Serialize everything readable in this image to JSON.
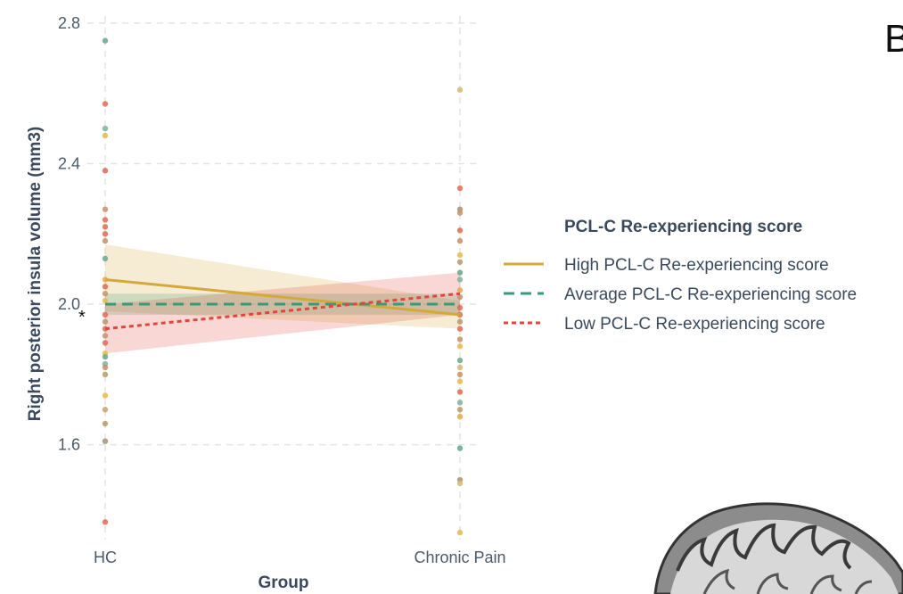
{
  "panel_letter": "B",
  "significance_marker": "*",
  "chart_data": {
    "type": "line",
    "xlabel": "Group",
    "ylabel": "Right posterior insula volume (mm3)",
    "categories": [
      "HC",
      "Chronic Pain"
    ],
    "ylim": [
      1.33,
      2.82
    ],
    "y_ticks": [
      2.8,
      2.4,
      2.0,
      1.6
    ],
    "y_tick_labels": [
      "2.8",
      "2.4",
      "2.0",
      "1.6"
    ],
    "grid": true,
    "legend": {
      "title": "PCL-C Re-experiencing score",
      "placement": "right"
    },
    "series": [
      {
        "name": "High PCL-C Re-experiencing score",
        "values": [
          2.07,
          1.97
        ],
        "ci_low": [
          1.98,
          1.93
        ],
        "ci_high": [
          2.17,
          2.01
        ],
        "color": "#d4a93a",
        "dash": "solid"
      },
      {
        "name": "Average PCL-C Re-experiencing score",
        "values": [
          2.0,
          2.0
        ],
        "ci_low": [
          1.97,
          1.97
        ],
        "ci_high": [
          2.03,
          2.03
        ],
        "color": "#3a9a78",
        "dash": "dashed"
      },
      {
        "name": "Low PCL-C Re-experiencing score",
        "values": [
          1.93,
          2.03
        ],
        "ci_low": [
          1.86,
          1.97
        ],
        "ci_high": [
          2.0,
          2.09
        ],
        "color": "#e0473c",
        "dash": "dotted"
      }
    ],
    "points": {
      "HC": [
        {
          "y": 2.75,
          "color": "#6aa88c"
        },
        {
          "y": 2.57,
          "color": "#e06a52"
        },
        {
          "y": 2.5,
          "color": "#7fb0a0"
        },
        {
          "y": 2.48,
          "color": "#e6b84a"
        },
        {
          "y": 2.38,
          "color": "#e06a52"
        },
        {
          "y": 2.27,
          "color": "#c8906a"
        },
        {
          "y": 2.24,
          "color": "#e06a52"
        },
        {
          "y": 2.22,
          "color": "#d87050"
        },
        {
          "y": 2.2,
          "color": "#e06a52"
        },
        {
          "y": 2.18,
          "color": "#c8906a"
        },
        {
          "y": 2.13,
          "color": "#6aa88c"
        },
        {
          "y": 2.07,
          "color": "#e6a84a"
        },
        {
          "y": 2.05,
          "color": "#e06a52"
        },
        {
          "y": 2.03,
          "color": "#c8906a"
        },
        {
          "y": 2.01,
          "color": "#e6b84a"
        },
        {
          "y": 1.97,
          "color": "#e06a52"
        },
        {
          "y": 1.95,
          "color": "#b89a6a"
        },
        {
          "y": 1.93,
          "color": "#e06a52"
        },
        {
          "y": 1.91,
          "color": "#c8906a"
        },
        {
          "y": 1.89,
          "color": "#e06a52"
        },
        {
          "y": 1.86,
          "color": "#e6b84a"
        },
        {
          "y": 1.85,
          "color": "#6aa88c"
        },
        {
          "y": 1.83,
          "color": "#7fb0a0"
        },
        {
          "y": 1.82,
          "color": "#c8906a"
        },
        {
          "y": 1.8,
          "color": "#b89a6a"
        },
        {
          "y": 1.74,
          "color": "#e6b84a"
        },
        {
          "y": 1.7,
          "color": "#c8a070"
        },
        {
          "y": 1.66,
          "color": "#b89a6a"
        },
        {
          "y": 1.61,
          "color": "#a89070"
        },
        {
          "y": 1.38,
          "color": "#e06a52"
        }
      ],
      "Chronic Pain": [
        {
          "y": 2.61,
          "color": "#d8b870"
        },
        {
          "y": 2.33,
          "color": "#e06a52"
        },
        {
          "y": 2.27,
          "color": "#a89070"
        },
        {
          "y": 2.26,
          "color": "#c8906a"
        },
        {
          "y": 2.21,
          "color": "#d87050"
        },
        {
          "y": 2.18,
          "color": "#c8906a"
        },
        {
          "y": 2.14,
          "color": "#e6b84a"
        },
        {
          "y": 2.12,
          "color": "#b89a6a"
        },
        {
          "y": 2.09,
          "color": "#6aa88c"
        },
        {
          "y": 2.07,
          "color": "#7fb0a0"
        },
        {
          "y": 2.04,
          "color": "#e6a84a"
        },
        {
          "y": 2.02,
          "color": "#c8906a"
        },
        {
          "y": 1.99,
          "color": "#e06a52"
        },
        {
          "y": 1.97,
          "color": "#d87050"
        },
        {
          "y": 1.95,
          "color": "#b89a6a"
        },
        {
          "y": 1.93,
          "color": "#e06a52"
        },
        {
          "y": 1.9,
          "color": "#c8906a"
        },
        {
          "y": 1.88,
          "color": "#e6b84a"
        },
        {
          "y": 1.84,
          "color": "#6aa88c"
        },
        {
          "y": 1.82,
          "color": "#d8b870"
        },
        {
          "y": 1.8,
          "color": "#c8906a"
        },
        {
          "y": 1.78,
          "color": "#e6b84a"
        },
        {
          "y": 1.75,
          "color": "#e06a52"
        },
        {
          "y": 1.72,
          "color": "#7fb0a0"
        },
        {
          "y": 1.7,
          "color": "#b89a6a"
        },
        {
          "y": 1.68,
          "color": "#e6a84a"
        },
        {
          "y": 1.59,
          "color": "#6aa88c"
        },
        {
          "y": 1.5,
          "color": "#a89070"
        },
        {
          "y": 1.49,
          "color": "#d8b870"
        },
        {
          "y": 1.35,
          "color": "#e6b84a"
        }
      ]
    }
  }
}
